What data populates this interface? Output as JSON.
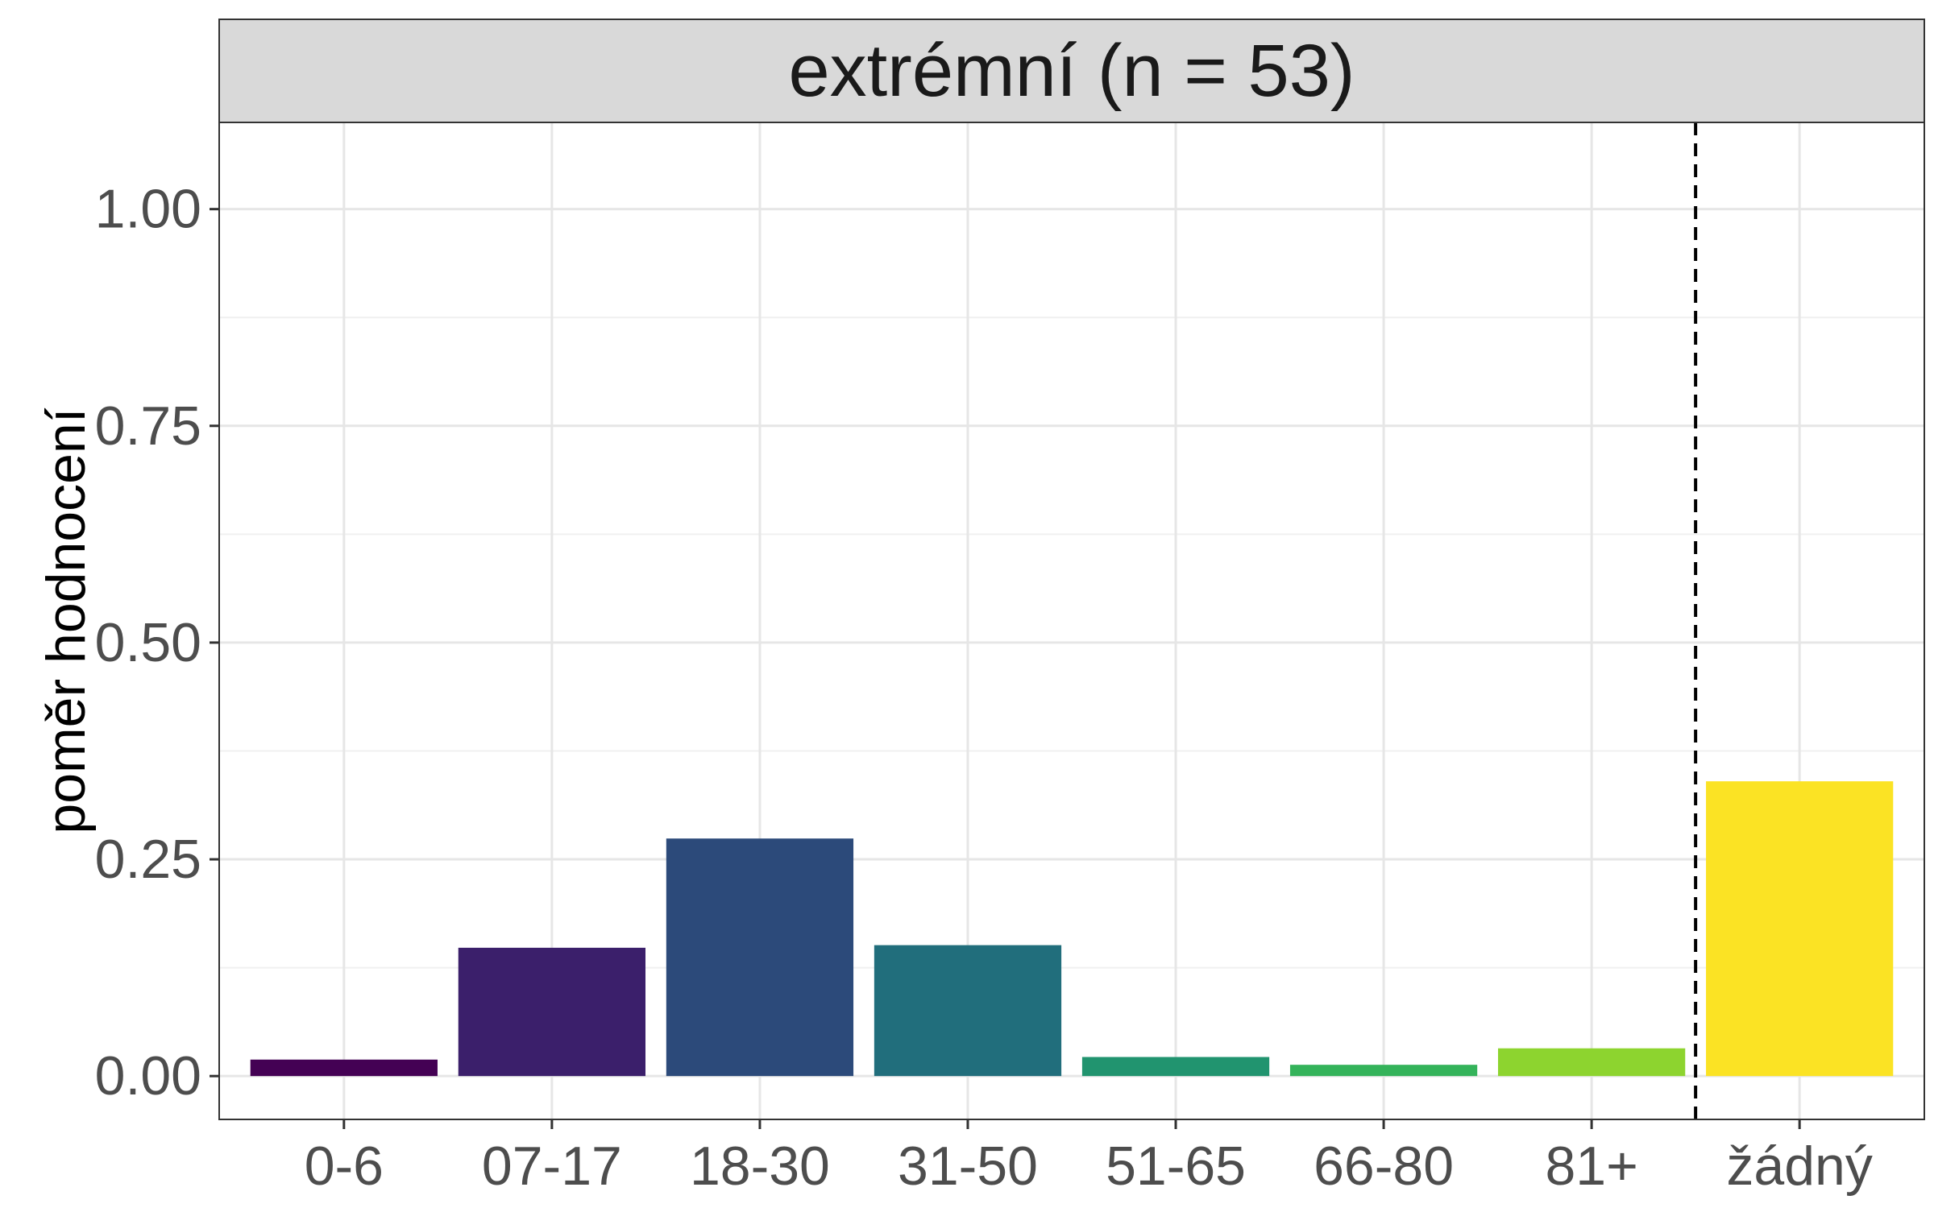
{
  "chart_data": {
    "type": "bar",
    "panel_title": "extrémní (n = 53)",
    "categories": [
      "0-6",
      "07-17",
      "18-30",
      "31-50",
      "51-65",
      "66-80",
      "81+",
      "žádný"
    ],
    "values": [
      0.019,
      0.148,
      0.274,
      0.151,
      0.022,
      0.013,
      0.032,
      0.34
    ],
    "colors": [
      "#440154",
      "#3b1f6b",
      "#2c4a7a",
      "#216e7c",
      "#21946f",
      "#34b35a",
      "#8dd42f",
      "#fbe324"
    ],
    "ylabel": "poměr hodnocení",
    "xlabel": "",
    "ylim": [
      -0.05,
      1.1
    ],
    "yticks": [
      "0.00",
      "0.25",
      "0.50",
      "0.75",
      "1.00"
    ],
    "reference_line": {
      "style": "dashed",
      "between": [
        "81+",
        "žádný"
      ]
    },
    "grid": true,
    "legend": "none"
  }
}
